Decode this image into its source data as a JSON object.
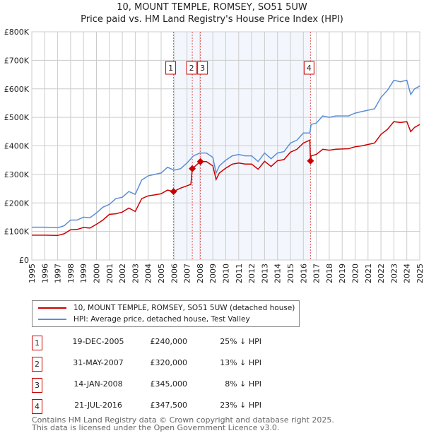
{
  "chart_data": {
    "type": "line",
    "title": "10, MOUNT TEMPLE, ROMSEY, SO51 5UW",
    "subtitle": "Price paid vs. HM Land Registry's House Price Index (HPI)",
    "xlim": [
      1995,
      2025
    ],
    "ylim": [
      0,
      800000
    ],
    "grid": true,
    "x_ticks": [
      "1995",
      "1996",
      "1997",
      "1998",
      "1999",
      "2000",
      "2001",
      "2002",
      "2003",
      "2004",
      "2005",
      "2006",
      "2007",
      "2008",
      "2009",
      "2010",
      "2011",
      "2012",
      "2013",
      "2014",
      "2015",
      "2016",
      "2017",
      "2018",
      "2019",
      "2020",
      "2021",
      "2022",
      "2023",
      "2024",
      "2025"
    ],
    "y_ticks": [
      {
        "v": 0,
        "label": "£0"
      },
      {
        "v": 100000,
        "label": "£100K"
      },
      {
        "v": 200000,
        "label": "£200K"
      },
      {
        "v": 300000,
        "label": "£300K"
      },
      {
        "v": 400000,
        "label": "£400K"
      },
      {
        "v": 500000,
        "label": "£500K"
      },
      {
        "v": 600000,
        "label": "£600K"
      },
      {
        "v": 700000,
        "label": "£700K"
      },
      {
        "v": 800000,
        "label": "£800K"
      }
    ],
    "shaded_range": [
      2005.96,
      2016.55
    ],
    "series": [
      {
        "name": "HPI: Average price, detached house, Test Valley",
        "color": "#5b8ed6",
        "x": [
          1995,
          1996,
          1997,
          1997.5,
          1998,
          1998.5,
          1999,
          1999.5,
          2000,
          2000.5,
          2001,
          2001.5,
          2002,
          2002.5,
          2003,
          2003.5,
          2004,
          2004.5,
          2005,
          2005.5,
          2006,
          2006.5,
          2007,
          2007.5,
          2008,
          2008.5,
          2009,
          2009.25,
          2009.5,
          2010,
          2010.5,
          2011,
          2011.5,
          2012,
          2012.5,
          2013,
          2013.5,
          2014,
          2014.5,
          2015,
          2015.5,
          2016,
          2016.5,
          2016.6,
          2017,
          2017.5,
          2018,
          2018.5,
          2019,
          2019.5,
          2020,
          2020.5,
          2021,
          2021.5,
          2022,
          2022.5,
          2023,
          2023.5,
          2024,
          2024.3,
          2024.6,
          2025
        ],
        "y": [
          115000,
          115000,
          113000,
          120000,
          140000,
          140000,
          150000,
          148000,
          165000,
          185000,
          195000,
          215000,
          220000,
          240000,
          230000,
          280000,
          295000,
          300000,
          305000,
          325000,
          315000,
          320000,
          340000,
          365000,
          375000,
          375000,
          360000,
          305000,
          330000,
          350000,
          365000,
          370000,
          365000,
          365000,
          345000,
          375000,
          355000,
          375000,
          380000,
          410000,
          420000,
          445000,
          445000,
          475000,
          480000,
          505000,
          500000,
          505000,
          505000,
          505000,
          515000,
          520000,
          525000,
          530000,
          570000,
          595000,
          630000,
          625000,
          630000,
          580000,
          600000,
          610000
        ]
      },
      {
        "name": "10, MOUNT TEMPLE, ROMSEY, SO51 5UW (detached house)",
        "color": "#cc0000",
        "x": [
          1995,
          1996,
          1997,
          1997.5,
          1998,
          1998.5,
          1999,
          1999.5,
          2000,
          2000.5,
          2001,
          2001.5,
          2002,
          2002.5,
          2003,
          2003.5,
          2004,
          2004.5,
          2005,
          2005.5,
          2005.96,
          2006.5,
          2007.3,
          2007.41,
          2008.04,
          2008.5,
          2009,
          2009.25,
          2009.5,
          2010,
          2010.5,
          2011,
          2011.5,
          2012,
          2012.5,
          2013,
          2013.5,
          2014,
          2014.5,
          2015,
          2015.5,
          2016,
          2016.5,
          2016.55,
          2016.6,
          2017,
          2017.5,
          2018,
          2018.5,
          2019,
          2019.5,
          2020,
          2020.5,
          2021,
          2021.5,
          2022,
          2022.5,
          2023,
          2023.5,
          2024,
          2024.3,
          2024.6,
          2025
        ],
        "y": [
          87000,
          87000,
          86000,
          92000,
          106000,
          107000,
          114000,
          112000,
          125000,
          140000,
          160000,
          162000,
          168000,
          182000,
          170000,
          215000,
          225000,
          228000,
          232000,
          245000,
          240000,
          252000,
          265000,
          320000,
          345000,
          345000,
          330000,
          282000,
          305000,
          322000,
          336000,
          340000,
          336000,
          336000,
          318000,
          346000,
          328000,
          348000,
          352000,
          378000,
          388000,
          410000,
          420000,
          347500,
          365000,
          370000,
          388000,
          385000,
          388000,
          389000,
          390000,
          397000,
          400000,
          405000,
          410000,
          440000,
          458000,
          485000,
          482000,
          485000,
          450000,
          465000,
          475000
        ]
      }
    ],
    "sales": [
      {
        "id": "1",
        "x": 2005.96,
        "y": 240000,
        "date": "19-DEC-2005",
        "price": "£240,000",
        "hpi": "25% ↓ HPI"
      },
      {
        "id": "2",
        "x": 2007.41,
        "y": 320000,
        "date": "31-MAY-2007",
        "price": "£320,000",
        "hpi": "13% ↓ HPI"
      },
      {
        "id": "3",
        "x": 2008.04,
        "y": 345000,
        "date": "14-JAN-2008",
        "price": "£345,000",
        "hpi": "8% ↓ HPI"
      },
      {
        "id": "4",
        "x": 2016.55,
        "y": 347500,
        "date": "21-JUL-2016",
        "price": "£347,500",
        "hpi": "23% ↓ HPI"
      }
    ]
  },
  "footer": {
    "line1": "Contains HM Land Registry data © Crown copyright and database right 2025.",
    "line2": "This data is licensed under the Open Government Licence v3.0."
  }
}
